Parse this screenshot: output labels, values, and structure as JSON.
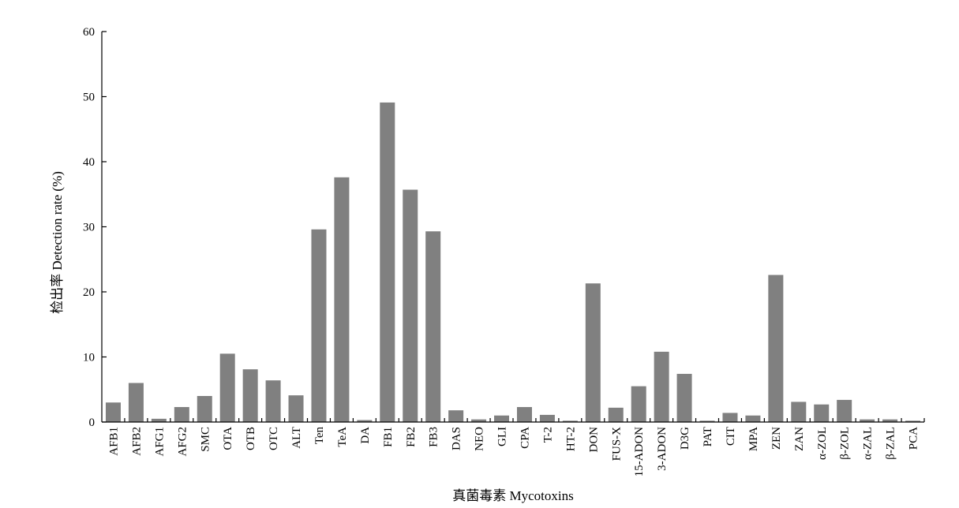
{
  "chart_data": {
    "type": "bar",
    "xlabel": "真菌毒素 Mycotoxins",
    "ylabel": "检出率 Detection rate (%)",
    "ylim": [
      0,
      60
    ],
    "yticks": [
      0,
      10,
      20,
      30,
      40,
      50,
      60
    ],
    "grid": false,
    "bar_color": "#808080",
    "categories": [
      "AFB1",
      "AFB2",
      "AFG1",
      "AFG2",
      "SMC",
      "OTA",
      "OTB",
      "OTC",
      "ALT",
      "Ten",
      "TeA",
      "DA",
      "FB1",
      "FB2",
      "FB3",
      "DAS",
      "NEO",
      "GLI",
      "CPA",
      "T-2",
      "HT-2",
      "DON",
      "FUS-X",
      "15-ADON",
      "3-ADON",
      "D3G",
      "PAT",
      "CIT",
      "MPA",
      "ZEN",
      "ZAN",
      "α-ZOL",
      "β-ZOL",
      "α-ZAL",
      "β-ZAL",
      "PCA"
    ],
    "values": [
      3.0,
      6.0,
      0.5,
      2.3,
      4.0,
      10.5,
      8.1,
      6.4,
      4.1,
      29.6,
      37.6,
      0.3,
      49.1,
      35.7,
      29.3,
      1.8,
      0.4,
      1.0,
      2.3,
      1.1,
      0.2,
      21.3,
      2.2,
      5.5,
      10.8,
      7.4,
      0.2,
      1.4,
      1.0,
      22.6,
      3.1,
      2.7,
      3.4,
      0.4,
      0.4,
      0.2
    ]
  }
}
